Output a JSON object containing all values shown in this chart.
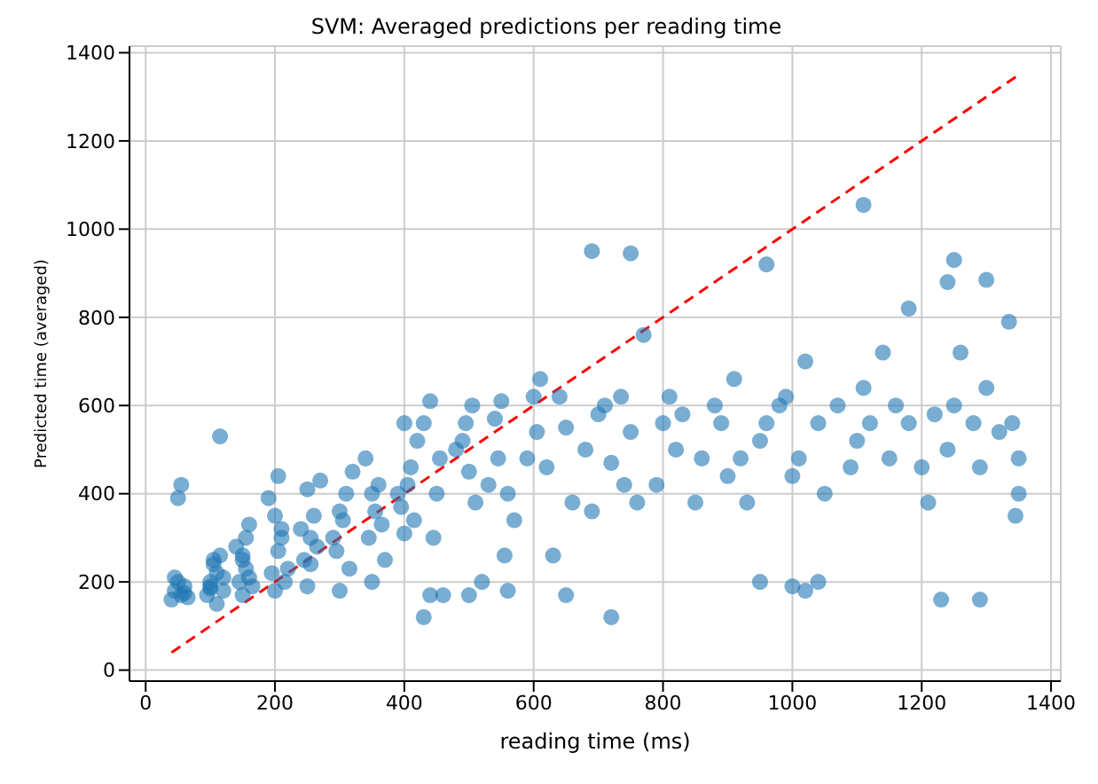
{
  "chart_data": {
    "type": "scatter",
    "title": "SVM: Averaged predictions per reading time",
    "xlabel": "reading time (ms)",
    "ylabel": "Predicted time (averaged)",
    "xlim": [
      -25,
      1415
    ],
    "ylim": [
      -25,
      1415
    ],
    "xticks": [
      0,
      200,
      400,
      600,
      800,
      1000,
      1200,
      1400
    ],
    "yticks": [
      0,
      200,
      400,
      600,
      800,
      1000,
      1200,
      1400
    ],
    "grid": true,
    "marker": "circle",
    "series": [
      {
        "color": "#1f77b4",
        "x": [
          40,
          45,
          50,
          55,
          60,
          50,
          55,
          45,
          60,
          65,
          100,
          110,
          100,
          105,
          115,
          120,
          95,
          110,
          100,
          115,
          120,
          105,
          150,
          145,
          155,
          160,
          150,
          165,
          140,
          160,
          150,
          155,
          200,
          195,
          205,
          210,
          200,
          190,
          215,
          205,
          220,
          210,
          250,
          245,
          255,
          260,
          250,
          265,
          240,
          270,
          255,
          300,
          295,
          305,
          310,
          290,
          320,
          300,
          315,
          350,
          345,
          355,
          360,
          340,
          365,
          350,
          370,
          400,
          395,
          405,
          410,
          390,
          420,
          400,
          415,
          440,
          445,
          455,
          450,
          430,
          460,
          480,
          500,
          495,
          505,
          510,
          490,
          520,
          530,
          545,
          550,
          555,
          560,
          540,
          570,
          600,
          590,
          605,
          610,
          620,
          640,
          650,
          660,
          630,
          680,
          700,
          690,
          710,
          720,
          740,
          750,
          760,
          735,
          770,
          800,
          790,
          810,
          820,
          830,
          850,
          860,
          880,
          900,
          890,
          910,
          920,
          930,
          950,
          960,
          980,
          1000,
          990,
          1010,
          1020,
          1040,
          1050,
          1070,
          1090,
          1100,
          1110,
          1120,
          1140,
          1150,
          1160,
          1180,
          1200,
          1210,
          1220,
          1240,
          1250,
          1260,
          1280,
          1290,
          1300,
          1320,
          1335,
          1340,
          1345,
          1350,
          1350,
          690,
          750,
          430,
          720,
          950,
          1000,
          1040,
          1230,
          1290,
          500,
          560,
          440,
          650,
          1020,
          1110,
          1180,
          1240,
          1300,
          1250,
          960
        ],
        "values": [
          160,
          180,
          200,
          170,
          190,
          390,
          420,
          210,
          175,
          165,
          185,
          150,
          200,
          250,
          530,
          180,
          170,
          220,
          190,
          260,
          210,
          240,
          170,
          200,
          230,
          330,
          260,
          190,
          280,
          210,
          250,
          300,
          180,
          220,
          270,
          300,
          350,
          390,
          200,
          440,
          230,
          320,
          190,
          250,
          300,
          350,
          410,
          280,
          320,
          430,
          240,
          180,
          270,
          340,
          400,
          300,
          450,
          360,
          230,
          200,
          300,
          360,
          420,
          480,
          330,
          400,
          250,
          310,
          370,
          420,
          460,
          400,
          520,
          560,
          340,
          610,
          300,
          480,
          400,
          560,
          170,
          500,
          450,
          560,
          600,
          380,
          520,
          200,
          420,
          480,
          610,
          260,
          400,
          570,
          340,
          620,
          480,
          540,
          660,
          460,
          620,
          550,
          380,
          260,
          500,
          580,
          360,
          600,
          470,
          420,
          540,
          380,
          620,
          760,
          560,
          420,
          620,
          500,
          580,
          380,
          480,
          600,
          440,
          560,
          660,
          480,
          380,
          520,
          560,
          600,
          440,
          620,
          480,
          700,
          560,
          400,
          600,
          460,
          520,
          640,
          560,
          720,
          480,
          600,
          560,
          460,
          380,
          580,
          500,
          600,
          720,
          560,
          460,
          640,
          540,
          790,
          560,
          350,
          400,
          480,
          950,
          945,
          120,
          120,
          200,
          190,
          200,
          160,
          160,
          170,
          180,
          170,
          170,
          180,
          1055,
          820,
          880,
          885,
          930,
          920
        ]
      },
      {
        "type": "line",
        "color": "#ff0000",
        "line_style": "dashed",
        "marker": "none",
        "x": [
          40,
          1350
        ],
        "values": [
          40,
          1350
        ]
      }
    ]
  }
}
